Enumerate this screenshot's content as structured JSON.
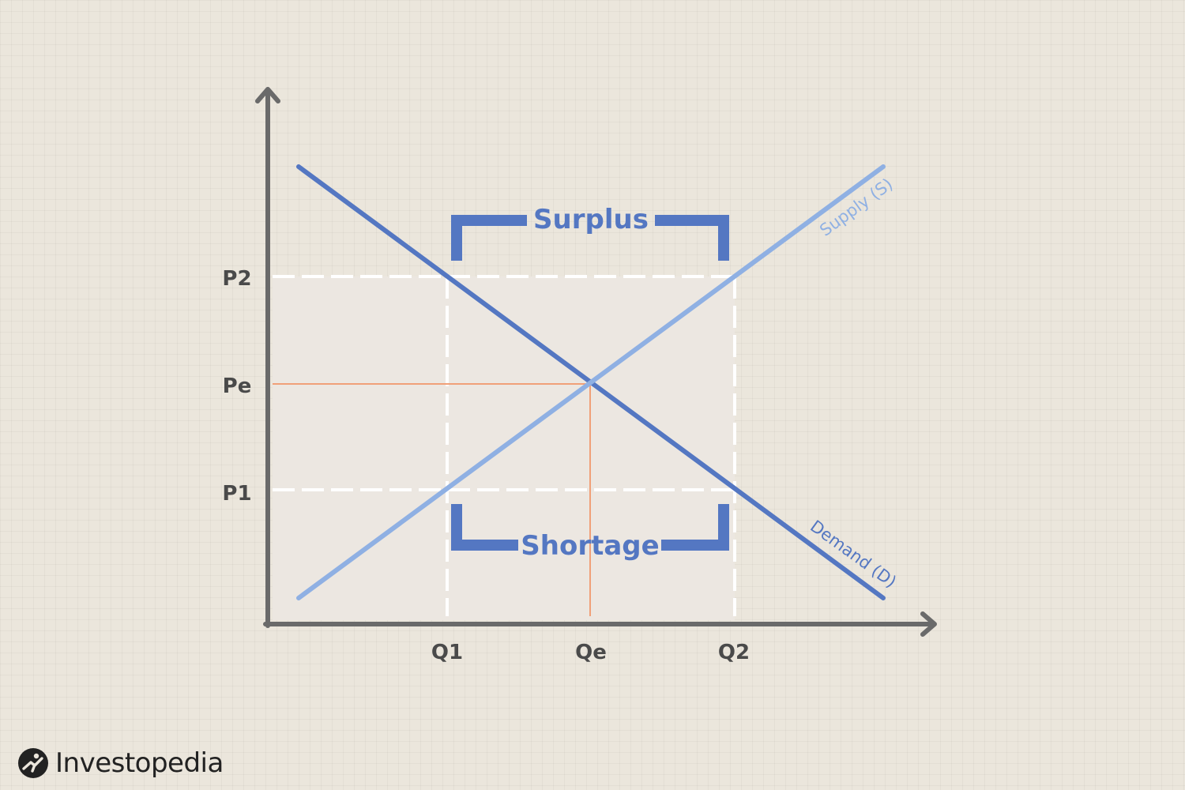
{
  "colors": {
    "demand": "#5477c2",
    "supply": "#8fb0e3",
    "bracket": "#5477c2",
    "equilibrium_guide": "#f0a078",
    "axis": "#6a6a6a",
    "guide": "#ffffff",
    "region": "#ece7e1"
  },
  "axes": {
    "y_ticks": [
      {
        "key": "P2",
        "label": "P2"
      },
      {
        "key": "Pe",
        "label": "Pe"
      },
      {
        "key": "P1",
        "label": "P1"
      }
    ],
    "x_ticks": [
      {
        "key": "Q1",
        "label": "Q1"
      },
      {
        "key": "Qe",
        "label": "Qe"
      },
      {
        "key": "Q2",
        "label": "Q2"
      }
    ]
  },
  "curves": {
    "supply_label": "Supply (S)",
    "demand_label": "Demand (D)"
  },
  "brackets": {
    "surplus_label": "Surplus",
    "shortage_label": "Shortage"
  },
  "branding": {
    "logo_text": "Investopedia",
    "logo_icon": "investopedia-logo-icon"
  }
}
